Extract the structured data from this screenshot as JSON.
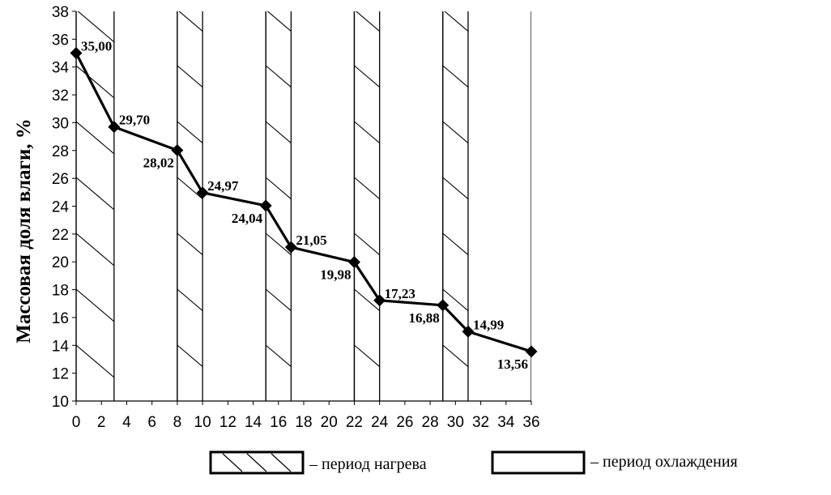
{
  "chart_data": {
    "type": "line",
    "title": "",
    "xlabel": "",
    "ylabel": "Массовая доля влаги,  %",
    "xlim": [
      0,
      36
    ],
    "ylim": [
      10,
      38
    ],
    "x_ticks": [
      0,
      2,
      4,
      6,
      8,
      10,
      12,
      14,
      16,
      18,
      20,
      22,
      24,
      26,
      28,
      30,
      32,
      34,
      36
    ],
    "y_ticks": [
      10,
      12,
      14,
      16,
      18,
      20,
      22,
      24,
      26,
      28,
      30,
      32,
      34,
      36,
      38
    ],
    "x_tick_labels": [
      "0",
      "2",
      "4",
      "6",
      "8",
      "10",
      "12",
      "14",
      "16",
      "18",
      "20",
      "22",
      "24",
      "26",
      "28",
      "30",
      "32",
      "34",
      "36"
    ],
    "y_tick_labels": [
      "10",
      "12",
      "14",
      "16",
      "18",
      "20",
      "22",
      "24",
      "26",
      "28",
      "30",
      "32",
      "34",
      "36",
      "38"
    ],
    "series": [
      {
        "x": [
          0,
          3,
          8,
          10,
          15,
          17,
          22,
          24,
          29,
          31,
          36
        ],
        "values": [
          35.0,
          29.7,
          28.02,
          24.97,
          24.04,
          21.05,
          19.98,
          17.23,
          16.88,
          14.99,
          13.56
        ],
        "labels": [
          "35,00",
          "29,70",
          "28,02",
          "24,97",
          "24,04",
          "21,05",
          "19,98",
          "17,23",
          "16,88",
          "14,99",
          "13,56"
        ],
        "label_side": [
          "right",
          "right",
          "left",
          "right",
          "left",
          "right",
          "left",
          "right",
          "left",
          "right",
          "left"
        ],
        "color": "#000000",
        "marker": "diamond"
      }
    ],
    "heating_periods": [
      [
        0,
        3
      ],
      [
        8,
        10
      ],
      [
        15,
        17
      ],
      [
        22,
        24
      ],
      [
        29,
        31
      ]
    ],
    "cooling_periods": [
      [
        3,
        8
      ],
      [
        10,
        15
      ],
      [
        17,
        22
      ],
      [
        24,
        29
      ],
      [
        31,
        36
      ]
    ],
    "grid": false,
    "legend": {
      "placement": "bottom",
      "entries": [
        {
          "pattern": "hatched",
          "text": "– период нагрева"
        },
        {
          "pattern": "blank",
          "text": "– период охлаждения"
        }
      ]
    }
  }
}
